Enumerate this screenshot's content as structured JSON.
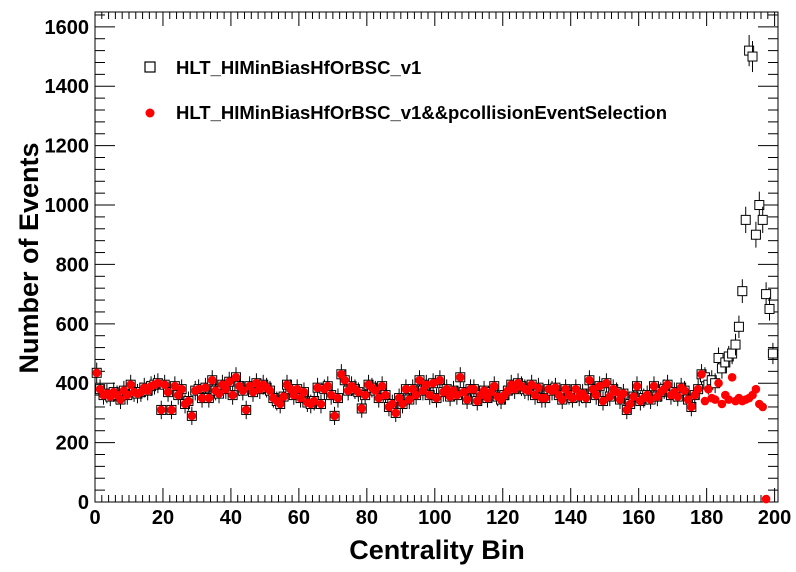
{
  "chart_data": {
    "type": "scatter",
    "xlabel": "Centrality Bin",
    "ylabel": "Number of Events",
    "xlim": [
      0,
      201
    ],
    "ylim": [
      0,
      1650
    ],
    "x_ticks": [
      0,
      20,
      40,
      60,
      80,
      100,
      120,
      140,
      160,
      180,
      200
    ],
    "y_ticks": [
      0,
      200,
      400,
      600,
      800,
      1000,
      1200,
      1400,
      1600
    ],
    "grid": false,
    "legend_position": "top-left",
    "series": [
      {
        "name": "HLT_HIMinBiasHfOrBSC_v1",
        "marker": "open-square",
        "color": "#000000",
        "x": [
          0,
          1,
          2,
          3,
          4,
          5,
          6,
          7,
          8,
          9,
          10,
          11,
          12,
          13,
          14,
          15,
          16,
          17,
          18,
          19,
          20,
          21,
          22,
          23,
          24,
          25,
          26,
          27,
          28,
          29,
          30,
          31,
          32,
          33,
          34,
          35,
          36,
          37,
          38,
          39,
          40,
          41,
          42,
          43,
          44,
          45,
          46,
          47,
          48,
          49,
          50,
          51,
          52,
          53,
          54,
          55,
          56,
          57,
          58,
          59,
          60,
          61,
          62,
          63,
          64,
          65,
          66,
          67,
          68,
          69,
          70,
          71,
          72,
          73,
          74,
          75,
          76,
          77,
          78,
          79,
          80,
          81,
          82,
          83,
          84,
          85,
          86,
          87,
          88,
          89,
          90,
          91,
          92,
          93,
          94,
          95,
          96,
          97,
          98,
          99,
          100,
          101,
          102,
          103,
          104,
          105,
          106,
          107,
          108,
          109,
          110,
          111,
          112,
          113,
          114,
          115,
          116,
          117,
          118,
          119,
          120,
          121,
          122,
          123,
          124,
          125,
          126,
          127,
          128,
          129,
          130,
          131,
          132,
          133,
          134,
          135,
          136,
          137,
          138,
          139,
          140,
          141,
          142,
          143,
          144,
          145,
          146,
          147,
          148,
          149,
          150,
          151,
          152,
          153,
          154,
          155,
          156,
          157,
          158,
          159,
          160,
          161,
          162,
          163,
          164,
          165,
          166,
          167,
          168,
          169,
          170,
          171,
          172,
          173,
          174,
          175,
          176,
          177,
          178,
          179,
          180,
          181,
          182,
          183,
          184,
          185,
          186,
          187,
          188,
          189,
          190,
          191,
          192,
          193,
          194,
          195,
          196,
          197,
          198,
          199
        ],
        "values": [
          435,
          380,
          360,
          365,
          355,
          370,
          360,
          345,
          375,
          360,
          395,
          370,
          365,
          370,
          385,
          375,
          390,
          395,
          400,
          310,
          395,
          370,
          310,
          390,
          360,
          380,
          330,
          340,
          290,
          375,
          380,
          350,
          385,
          350,
          410,
          375,
          365,
          395,
          380,
          405,
          360,
          420,
          390,
          375,
          310,
          390,
          370,
          400,
          380,
          395,
          385,
          375,
          350,
          340,
          330,
          355,
          395,
          380,
          360,
          380,
          350,
          370,
          335,
          330,
          340,
          385,
          330,
          380,
          390,
          360,
          290,
          350,
          430,
          410,
          375,
          390,
          380,
          370,
          315,
          360,
          395,
          385,
          375,
          350,
          390,
          360,
          320,
          330,
          300,
          350,
          330,
          380,
          345,
          380,
          360,
          410,
          375,
          395,
          360,
          400,
          350,
          410,
          370,
          380,
          355,
          375,
          360,
          420,
          370,
          345,
          380,
          380,
          340,
          360,
          375,
          350,
          370,
          390,
          355,
          345,
          360,
          375,
          395,
          380,
          400,
          390,
          380,
          375,
          395,
          360,
          385,
          350,
          350,
          380,
          375,
          385,
          360,
          345,
          380,
          360,
          350,
          380,
          355,
          365,
          350,
          410,
          380,
          360,
          390,
          340,
          400,
          355,
          380,
          370,
          345,
          365,
          310,
          330,
          355,
          390,
          340,
          350,
          360,
          345,
          390,
          355,
          370,
          380,
          395,
          360,
          370,
          355,
          385,
          375,
          345,
          320,
          360,
          380,
          430,
          420,
          395,
          410,
          400,
          485,
          450,
          470,
          490,
          500,
          530,
          590,
          710,
          950,
          1520,
          1500,
          900,
          1000,
          950,
          700,
          650,
          500
        ]
      },
      {
        "name": "HLT_HIMinBiasHfOrBSC_v1&&pcollisionEventSelection",
        "marker": "filled-circle",
        "color": "#ff0000",
        "x": [
          0,
          1,
          2,
          3,
          4,
          5,
          6,
          7,
          8,
          9,
          10,
          11,
          12,
          13,
          14,
          15,
          16,
          17,
          18,
          19,
          20,
          21,
          22,
          23,
          24,
          25,
          26,
          27,
          28,
          29,
          30,
          31,
          32,
          33,
          34,
          35,
          36,
          37,
          38,
          39,
          40,
          41,
          42,
          43,
          44,
          45,
          46,
          47,
          48,
          49,
          50,
          51,
          52,
          53,
          54,
          55,
          56,
          57,
          58,
          59,
          60,
          61,
          62,
          63,
          64,
          65,
          66,
          67,
          68,
          69,
          70,
          71,
          72,
          73,
          74,
          75,
          76,
          77,
          78,
          79,
          80,
          81,
          82,
          83,
          84,
          85,
          86,
          87,
          88,
          89,
          90,
          91,
          92,
          93,
          94,
          95,
          96,
          97,
          98,
          99,
          100,
          101,
          102,
          103,
          104,
          105,
          106,
          107,
          108,
          109,
          110,
          111,
          112,
          113,
          114,
          115,
          116,
          117,
          118,
          119,
          120,
          121,
          122,
          123,
          124,
          125,
          126,
          127,
          128,
          129,
          130,
          131,
          132,
          133,
          134,
          135,
          136,
          137,
          138,
          139,
          140,
          141,
          142,
          143,
          144,
          145,
          146,
          147,
          148,
          149,
          150,
          151,
          152,
          153,
          154,
          155,
          156,
          157,
          158,
          159,
          160,
          161,
          162,
          163,
          164,
          165,
          166,
          167,
          168,
          169,
          170,
          171,
          172,
          173,
          174,
          175,
          176,
          177,
          178,
          179,
          180,
          181,
          182,
          183,
          184,
          185,
          186,
          187,
          188,
          189,
          190,
          191,
          192,
          193,
          194,
          195,
          196,
          197,
          198,
          199
        ],
        "values": [
          435,
          380,
          360,
          365,
          355,
          370,
          360,
          345,
          375,
          360,
          395,
          370,
          365,
          370,
          385,
          375,
          390,
          395,
          400,
          310,
          395,
          370,
          310,
          390,
          360,
          380,
          330,
          340,
          290,
          375,
          380,
          350,
          385,
          350,
          410,
          375,
          365,
          395,
          380,
          405,
          360,
          420,
          390,
          375,
          310,
          390,
          370,
          400,
          380,
          395,
          385,
          375,
          350,
          340,
          330,
          355,
          395,
          380,
          360,
          380,
          350,
          370,
          335,
          330,
          340,
          385,
          330,
          380,
          390,
          360,
          290,
          350,
          430,
          410,
          375,
          390,
          380,
          370,
          315,
          360,
          395,
          385,
          375,
          350,
          390,
          360,
          320,
          330,
          300,
          350,
          330,
          380,
          345,
          380,
          360,
          410,
          375,
          395,
          360,
          400,
          350,
          410,
          370,
          380,
          355,
          375,
          360,
          420,
          370,
          345,
          380,
          380,
          340,
          360,
          375,
          350,
          370,
          390,
          355,
          345,
          360,
          375,
          395,
          380,
          400,
          390,
          380,
          375,
          395,
          360,
          385,
          350,
          350,
          380,
          375,
          385,
          360,
          345,
          380,
          360,
          350,
          380,
          355,
          365,
          350,
          410,
          380,
          360,
          390,
          340,
          400,
          355,
          380,
          370,
          345,
          365,
          310,
          330,
          355,
          390,
          340,
          350,
          360,
          345,
          390,
          355,
          370,
          380,
          395,
          360,
          370,
          355,
          385,
          375,
          345,
          320,
          360,
          380,
          430,
          340,
          380,
          350,
          345,
          400,
          330,
          360,
          345,
          420,
          340,
          350,
          340,
          345,
          350,
          360,
          380,
          330,
          320,
          10,
          0,
          0
        ]
      }
    ]
  }
}
